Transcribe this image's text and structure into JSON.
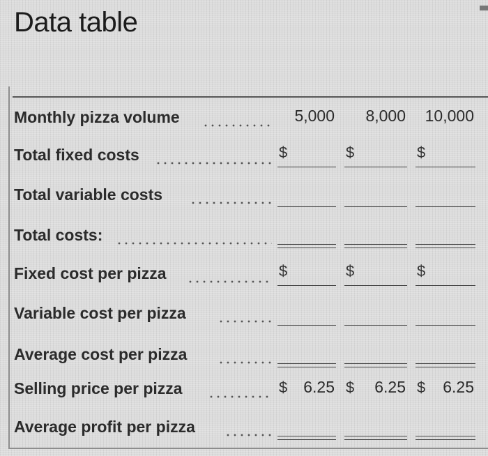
{
  "title": "Data table",
  "rows": [
    {
      "label": "Monthly pizza volume",
      "values": [
        "5,000",
        "8,000",
        "10,000"
      ]
    },
    {
      "label": "Total fixed costs",
      "dollar": "$"
    },
    {
      "label": "Total variable costs"
    },
    {
      "label": "Total costs:"
    },
    {
      "label": "Fixed cost per pizza",
      "dollar": "$"
    },
    {
      "label": "Variable cost per pizza"
    },
    {
      "label": "Average cost per pizza"
    },
    {
      "label": "Selling price per pizza",
      "dollar": "$",
      "values": [
        "6.25",
        "6.25",
        "6.25"
      ]
    },
    {
      "label": "Average profit per pizza"
    }
  ]
}
